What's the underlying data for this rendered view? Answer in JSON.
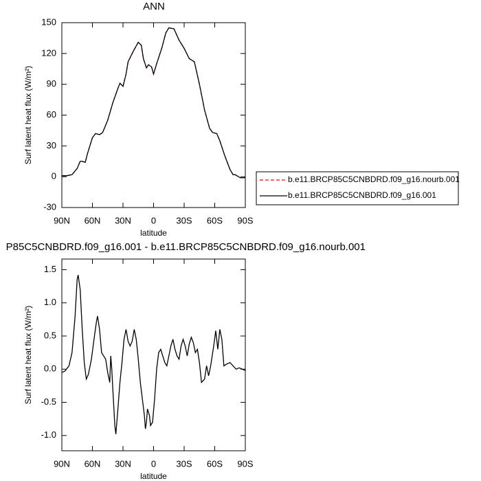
{
  "chart_data": [
    {
      "type": "line",
      "title": "ANN",
      "xlabel": "latitude",
      "ylabel": "Surf latent heat flux (W/m²)",
      "x": [
        90,
        85,
        80,
        75,
        72,
        70,
        67,
        65,
        60,
        57,
        53,
        50,
        45,
        40,
        35,
        33,
        30,
        27,
        25,
        20,
        15,
        12,
        10,
        7,
        5,
        2,
        0,
        -3,
        -8,
        -12,
        -15,
        -20,
        -25,
        -30,
        -35,
        -40,
        -45,
        -50,
        -55,
        -58,
        -62,
        -65,
        -70,
        -75,
        -78,
        -80,
        -85,
        -90
      ],
      "series": [
        {
          "name": "b.e11.BRCP85C5CNBDRD.f09_g16.nourb.001",
          "color": "#ff0000",
          "linestyle": "dashed",
          "values": [
            1,
            1,
            2,
            8,
            15,
            15,
            14,
            22,
            38,
            42,
            41,
            43,
            55,
            72,
            86,
            91,
            88,
            100,
            112,
            122,
            131,
            128,
            115,
            106,
            109,
            107,
            100,
            110,
            125,
            140,
            145,
            144,
            133,
            125,
            115,
            112,
            90,
            65,
            47,
            43,
            42,
            35,
            20,
            7,
            2,
            2,
            -1,
            -1
          ]
        },
        {
          "name": "b.e11.BRCP85C5CNBDRD.f09_g16.001",
          "color": "#000000",
          "linestyle": "solid",
          "values": [
            1,
            1,
            2,
            8,
            15,
            15,
            14,
            22,
            38,
            42,
            41,
            43,
            55,
            72,
            86,
            91,
            88,
            100,
            112,
            122,
            131,
            128,
            115,
            106,
            109,
            107,
            100,
            110,
            125,
            140,
            145,
            144,
            133,
            125,
            115,
            112,
            90,
            65,
            47,
            43,
            42,
            35,
            20,
            7,
            2,
            2,
            -1,
            -1
          ]
        }
      ],
      "xlim": [
        90,
        -90
      ],
      "xticks": [
        {
          "value": 90,
          "label": "90N"
        },
        {
          "value": 60,
          "label": "60N"
        },
        {
          "value": 30,
          "label": "30N"
        },
        0,
        {
          "value": -30,
          "label": "30S"
        },
        {
          "value": -60,
          "label": "60S"
        },
        {
          "value": -90,
          "label": "90S"
        }
      ],
      "ylim": [
        -30,
        150
      ],
      "yticks": [
        -30,
        0,
        30,
        60,
        90,
        120,
        150
      ]
    },
    {
      "type": "line",
      "title": "P85C5CNBDRD.f09_g16.001 - b.e11.BRCP85C5CNBDRD.f09_g16.nourb.001",
      "xlabel": "latitude",
      "ylabel": "Surf latent heat flux (W/m²)",
      "x": [
        90,
        87,
        83,
        80,
        77,
        75,
        74,
        72,
        70,
        68,
        66,
        64,
        61,
        58,
        56,
        55,
        53,
        51,
        49,
        47,
        45,
        43,
        42,
        41,
        40,
        38,
        37,
        35,
        33,
        31,
        29,
        27,
        25,
        23,
        21,
        19,
        17,
        15,
        13,
        11,
        9,
        8,
        7,
        6,
        4,
        3,
        1,
        -1,
        -3,
        -5,
        -7,
        -9,
        -11,
        -13,
        -15,
        -17,
        -19,
        -21,
        -23,
        -25,
        -27,
        -29,
        -31,
        -33,
        -35,
        -37,
        -39,
        -41,
        -43,
        -45,
        -47,
        -50,
        -52,
        -54,
        -56,
        -59,
        -61,
        -63,
        -65,
        -67,
        -69,
        -72,
        -75,
        -78,
        -81,
        -84,
        -87,
        -90
      ],
      "values": [
        -0.05,
        -0.03,
        0.05,
        0.25,
        0.8,
        1.35,
        1.42,
        1.2,
        0.6,
        0.1,
        -0.15,
        -0.08,
        0.15,
        0.5,
        0.72,
        0.8,
        0.6,
        0.25,
        0.2,
        0.15,
        -0.05,
        -0.2,
        0.2,
        0.0,
        -0.3,
        -0.85,
        -0.98,
        -0.6,
        -0.2,
        0.1,
        0.45,
        0.6,
        0.42,
        0.35,
        0.42,
        0.6,
        0.45,
        0.15,
        -0.2,
        -0.45,
        -0.7,
        -0.9,
        -0.8,
        -0.6,
        -0.7,
        -0.85,
        -0.8,
        -0.45,
        0.0,
        0.25,
        0.3,
        0.2,
        0.1,
        0.05,
        0.2,
        0.35,
        0.45,
        0.3,
        0.2,
        0.15,
        0.35,
        0.45,
        0.35,
        0.2,
        0.38,
        0.48,
        0.4,
        0.25,
        0.3,
        0.1,
        -0.2,
        -0.15,
        0.05,
        -0.1,
        0.05,
        0.35,
        0.58,
        0.3,
        0.6,
        0.45,
        0.05,
        0.08,
        0.1,
        0.05,
        0.0,
        0.02,
        0.0,
        -0.02
      ],
      "color": "#000000",
      "xlim": [
        90,
        -90
      ],
      "xticks": [
        {
          "value": 90,
          "label": "90N"
        },
        {
          "value": 60,
          "label": "60N"
        },
        {
          "value": 30,
          "label": "30N"
        },
        0,
        {
          "value": -30,
          "label": "30S"
        },
        {
          "value": -60,
          "label": "60S"
        },
        {
          "value": -90,
          "label": "90S"
        }
      ],
      "ylim": [
        -1.23,
        1.66
      ],
      "yticks": [
        {
          "value": -1,
          "label": "-1.0"
        },
        -0.5,
        {
          "value": 0,
          "label": "0.0"
        },
        0.5,
        {
          "value": 1,
          "label": "1.0"
        },
        1.5
      ]
    }
  ]
}
